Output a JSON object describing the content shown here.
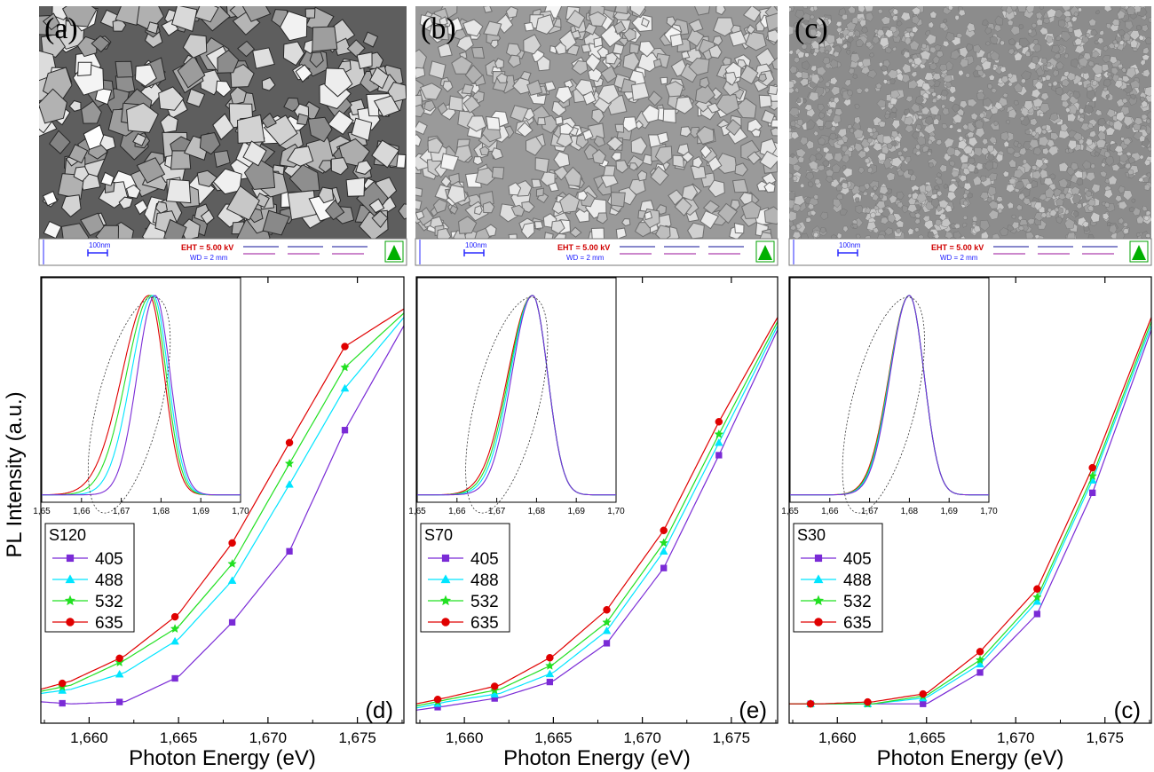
{
  "figure": {
    "ylabel": "PL Intensity (a.u.)",
    "xlabel": "Photon Energy (eV)"
  },
  "sem_panels": [
    {
      "label": "(a)",
      "scale_bar": "100nm",
      "eht": "EHT = 5.00 kV",
      "wd": "WD = 2 mm",
      "texture": "large-crystals"
    },
    {
      "label": "(b)",
      "scale_bar": "100nm",
      "eht": "EHT = 5.00 kV",
      "wd": "WD = 2 mm",
      "texture": "medium-crystals"
    },
    {
      "label": "(c)",
      "scale_bar": "100nm",
      "eht": "EHT = 5.00 kV",
      "wd": "WD = 2 mm",
      "texture": "fine-grain"
    }
  ],
  "series_styles": [
    {
      "name": "405",
      "color": "#7a2bd6",
      "marker": "square"
    },
    {
      "name": "488",
      "color": "#00e5ff",
      "marker": "triangle"
    },
    {
      "name": "532",
      "color": "#22e022",
      "marker": "star"
    },
    {
      "name": "635",
      "color": "#e00000",
      "marker": "circle"
    }
  ],
  "chart_data": [
    {
      "type": "line",
      "panel_label": "(d)",
      "legend_title": "S120",
      "xlabel": "Photon Energy (eV)",
      "ylabel": "PL Intensity (a.u.)",
      "xlim": [
        1.6573,
        1.6776
      ],
      "ylim": [
        0,
        1
      ],
      "xticks": [
        1.66,
        1.665,
        1.67,
        1.675
      ],
      "xtick_labels": [
        "1,660",
        "1,665",
        "1,670",
        "1,675"
      ],
      "marker_x": [
        1.6585,
        1.6617,
        1.6648,
        1.668,
        1.6712,
        1.6743
      ],
      "series": [
        {
          "name": "405",
          "x": [
            1.6573,
            1.659,
            1.662,
            1.665,
            1.668,
            1.6712,
            1.6743,
            1.6776
          ],
          "y": [
            0.03,
            0.025,
            0.03,
            0.09,
            0.22,
            0.39,
            0.68,
            0.93
          ]
        },
        {
          "name": "488",
          "x": [
            1.6573,
            1.659,
            1.662,
            1.665,
            1.668,
            1.6712,
            1.6743,
            1.6776
          ],
          "y": [
            0.05,
            0.06,
            0.1,
            0.18,
            0.32,
            0.55,
            0.78,
            0.95
          ]
        },
        {
          "name": "532",
          "x": [
            1.6573,
            1.659,
            1.662,
            1.665,
            1.668,
            1.6712,
            1.6743,
            1.6776
          ],
          "y": [
            0.055,
            0.07,
            0.13,
            0.21,
            0.36,
            0.6,
            0.83,
            0.96
          ]
        },
        {
          "name": "635",
          "x": [
            1.6573,
            1.659,
            1.662,
            1.665,
            1.668,
            1.6712,
            1.6743,
            1.6776
          ],
          "y": [
            0.06,
            0.08,
            0.14,
            0.24,
            0.41,
            0.65,
            0.88,
            0.97
          ]
        }
      ],
      "inset": {
        "xlim": [
          1.65,
          1.7
        ],
        "xticks": [
          1.65,
          1.66,
          1.67,
          1.68,
          1.69,
          1.7
        ],
        "xtick_labels": [
          "1,65",
          "1,66",
          "1,67",
          "1,68",
          "1,69",
          "1,70"
        ],
        "peaks": [
          {
            "name": "405",
            "center": 1.6785,
            "sigma_left": 0.0045
          },
          {
            "name": "488",
            "center": 1.678,
            "sigma_left": 0.0055
          },
          {
            "name": "532",
            "center": 1.6775,
            "sigma_left": 0.0062
          },
          {
            "name": "635",
            "center": 1.677,
            "sigma_left": 0.0068
          }
        ],
        "sigma_right": 0.0038
      }
    },
    {
      "type": "line",
      "panel_label": "(e)",
      "legend_title": "S70",
      "xlabel": "Photon Energy (eV)",
      "ylabel": "PL Intensity (a.u.)",
      "xlim": [
        1.6573,
        1.6776
      ],
      "ylim": [
        0,
        1
      ],
      "xticks": [
        1.66,
        1.665,
        1.67,
        1.675
      ],
      "xtick_labels": [
        "1,660",
        "1,665",
        "1,670",
        "1,675"
      ],
      "marker_x": [
        1.6585,
        1.6617,
        1.6648,
        1.668,
        1.6712,
        1.6743
      ],
      "series": [
        {
          "name": "405",
          "x": [
            1.6573,
            1.659,
            1.662,
            1.665,
            1.668,
            1.6712,
            1.6743,
            1.6776
          ],
          "y": [
            0.01,
            0.02,
            0.04,
            0.08,
            0.17,
            0.35,
            0.62,
            0.92
          ]
        },
        {
          "name": "488",
          "x": [
            1.6573,
            1.659,
            1.662,
            1.665,
            1.668,
            1.6712,
            1.6743,
            1.6776
          ],
          "y": [
            0.015,
            0.03,
            0.05,
            0.1,
            0.2,
            0.39,
            0.65,
            0.93
          ]
        },
        {
          "name": "532",
          "x": [
            1.6573,
            1.659,
            1.662,
            1.665,
            1.668,
            1.6712,
            1.6743,
            1.6776
          ],
          "y": [
            0.02,
            0.035,
            0.06,
            0.12,
            0.22,
            0.41,
            0.67,
            0.94
          ]
        },
        {
          "name": "635",
          "x": [
            1.6573,
            1.659,
            1.662,
            1.665,
            1.668,
            1.6712,
            1.6743,
            1.6776
          ],
          "y": [
            0.025,
            0.04,
            0.07,
            0.14,
            0.25,
            0.44,
            0.7,
            0.95
          ]
        }
      ],
      "inset": {
        "xlim": [
          1.65,
          1.7
        ],
        "xticks": [
          1.65,
          1.66,
          1.67,
          1.68,
          1.69,
          1.7
        ],
        "xtick_labels": [
          "1,65",
          "1,66",
          "1,67",
          "1,68",
          "1,69",
          "1,70"
        ],
        "peaks": [
          {
            "name": "405",
            "center": 1.679,
            "sigma_left": 0.0052
          },
          {
            "name": "488",
            "center": 1.679,
            "sigma_left": 0.0056
          },
          {
            "name": "532",
            "center": 1.679,
            "sigma_left": 0.0059
          },
          {
            "name": "635",
            "center": 1.679,
            "sigma_left": 0.0062
          }
        ],
        "sigma_right": 0.0038
      }
    },
    {
      "type": "line",
      "panel_label": "(c)",
      "legend_title": "S30",
      "xlabel": "Photon Energy (eV)",
      "ylabel": "PL Intensity (a.u.)",
      "xlim": [
        1.6573,
        1.6776
      ],
      "ylim": [
        0,
        1
      ],
      "xticks": [
        1.66,
        1.665,
        1.67,
        1.675
      ],
      "xtick_labels": [
        "1,660",
        "1,665",
        "1,670",
        "1,675"
      ],
      "marker_x": [
        1.6585,
        1.6617,
        1.6648,
        1.668,
        1.6712,
        1.6743
      ],
      "series": [
        {
          "name": "405",
          "x": [
            1.6573,
            1.659,
            1.662,
            1.665,
            1.668,
            1.6712,
            1.6743,
            1.6776
          ],
          "y": [
            0.025,
            0.025,
            0.025,
            0.025,
            0.1,
            0.24,
            0.53,
            0.92
          ]
        },
        {
          "name": "488",
          "x": [
            1.6573,
            1.659,
            1.662,
            1.665,
            1.668,
            1.6712,
            1.6743,
            1.6776
          ],
          "y": [
            0.025,
            0.025,
            0.025,
            0.04,
            0.12,
            0.27,
            0.56,
            0.93
          ]
        },
        {
          "name": "532",
          "x": [
            1.6573,
            1.659,
            1.662,
            1.665,
            1.668,
            1.6712,
            1.6743,
            1.6776
          ],
          "y": [
            0.025,
            0.025,
            0.025,
            0.045,
            0.13,
            0.28,
            0.57,
            0.94
          ]
        },
        {
          "name": "635",
          "x": [
            1.6573,
            1.659,
            1.662,
            1.665,
            1.668,
            1.6712,
            1.6743,
            1.6776
          ],
          "y": [
            0.025,
            0.025,
            0.03,
            0.05,
            0.15,
            0.3,
            0.59,
            0.95
          ]
        }
      ],
      "inset": {
        "xlim": [
          1.65,
          1.7
        ],
        "xticks": [
          1.65,
          1.66,
          1.67,
          1.68,
          1.69,
          1.7
        ],
        "xtick_labels": [
          "1,65",
          "1,66",
          "1,67",
          "1,68",
          "1,69",
          "1,70"
        ],
        "peaks": [
          {
            "name": "405",
            "center": 1.68,
            "sigma_left": 0.0048
          },
          {
            "name": "488",
            "center": 1.68,
            "sigma_left": 0.0049
          },
          {
            "name": "532",
            "center": 1.68,
            "sigma_left": 0.005
          },
          {
            "name": "635",
            "center": 1.68,
            "sigma_left": 0.0051
          }
        ],
        "sigma_right": 0.0037
      }
    }
  ]
}
